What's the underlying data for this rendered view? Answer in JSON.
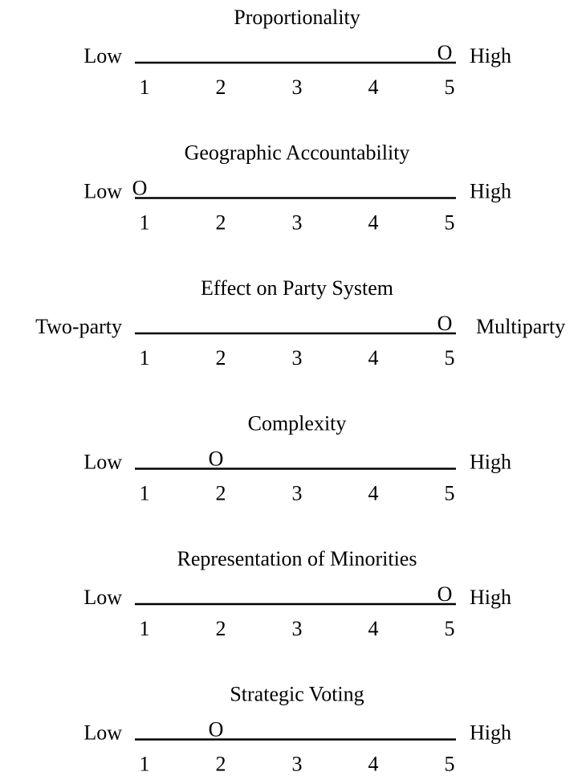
{
  "scales": [
    {
      "title": "Proportionality",
      "low": "Low",
      "high": "High",
      "marker": "O",
      "rating": 5,
      "ticks": [
        1,
        2,
        3,
        4,
        5
      ]
    },
    {
      "title": "Geographic Accountability",
      "low": "Low",
      "high": "High",
      "marker": "O",
      "rating": 1,
      "ticks": [
        1,
        2,
        3,
        4,
        5
      ]
    },
    {
      "title": "Effect on Party System",
      "low": "Two-party",
      "high": "Multiparty",
      "marker": "O",
      "rating": 5,
      "ticks": [
        1,
        2,
        3,
        4,
        5
      ]
    },
    {
      "title": "Complexity",
      "low": "Low",
      "high": "High",
      "marker": "O",
      "rating": 2,
      "ticks": [
        1,
        2,
        3,
        4,
        5
      ]
    },
    {
      "title": "Representation of Minorities",
      "low": "Low",
      "high": "High",
      "marker": "O",
      "rating": 5,
      "ticks": [
        1,
        2,
        3,
        4,
        5
      ]
    },
    {
      "title": "Strategic Voting",
      "low": "Low",
      "high": "High",
      "marker": "O",
      "rating": 2,
      "ticks": [
        1,
        2,
        3,
        4,
        5
      ]
    }
  ]
}
